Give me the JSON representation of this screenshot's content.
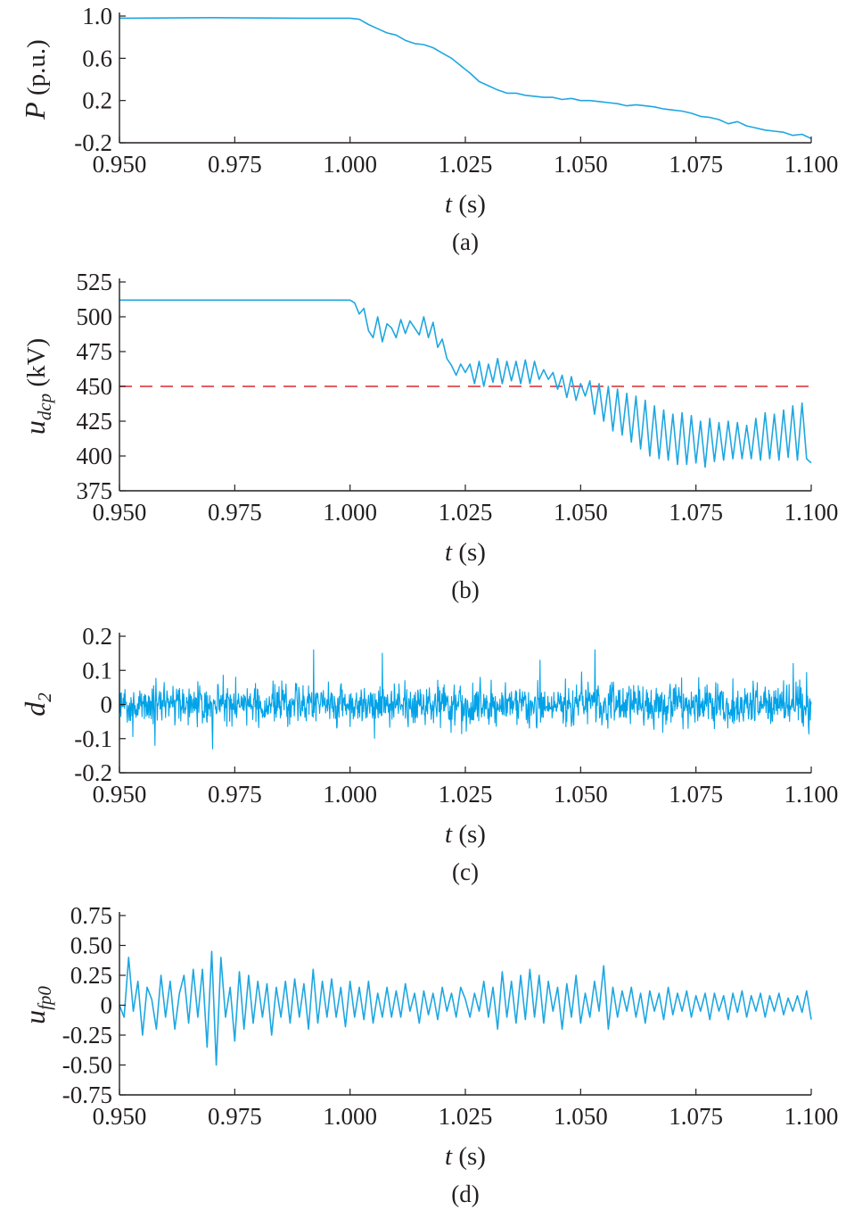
{
  "chart_data": [
    {
      "type": "line",
      "caption": "(a)",
      "ylabel_var": "P",
      "ylabel_unit": " (p.u.)",
      "xlabel_var": "t",
      "xlabel_unit": " (s)",
      "xlim": [
        0.95,
        1.1
      ],
      "ylim": [
        -0.2,
        1.0
      ],
      "xticks": [
        "0.950",
        "0.975",
        "1.000",
        "1.025",
        "1.050",
        "1.075",
        "1.100"
      ],
      "yticks": [
        "1.0",
        "0.6",
        "0.2",
        "-0.2"
      ],
      "ytick_values": [
        1.0,
        0.6,
        0.2,
        -0.2
      ],
      "line_color": "#1ea7e1",
      "series": [
        {
          "x": [
            0.95,
            0.97,
            0.99,
            1.0,
            1.002,
            1.004,
            1.006,
            1.008,
            1.01,
            1.012,
            1.014,
            1.016,
            1.018,
            1.02,
            1.022,
            1.024,
            1.026,
            1.028,
            1.03,
            1.032,
            1.034,
            1.036,
            1.038,
            1.04,
            1.042,
            1.044,
            1.046,
            1.048,
            1.05,
            1.052,
            1.054,
            1.056,
            1.058,
            1.06,
            1.062,
            1.064,
            1.066,
            1.068,
            1.07,
            1.072,
            1.074,
            1.076,
            1.078,
            1.08,
            1.082,
            1.084,
            1.086,
            1.088,
            1.09,
            1.092,
            1.094,
            1.096,
            1.098,
            1.1
          ],
          "y": [
            0.98,
            0.985,
            0.98,
            0.98,
            0.97,
            0.92,
            0.88,
            0.84,
            0.82,
            0.77,
            0.74,
            0.73,
            0.7,
            0.65,
            0.6,
            0.53,
            0.46,
            0.38,
            0.34,
            0.3,
            0.27,
            0.27,
            0.25,
            0.24,
            0.23,
            0.23,
            0.21,
            0.22,
            0.2,
            0.2,
            0.19,
            0.18,
            0.17,
            0.15,
            0.16,
            0.15,
            0.14,
            0.12,
            0.11,
            0.1,
            0.08,
            0.05,
            0.04,
            0.02,
            -0.02,
            0.0,
            -0.04,
            -0.06,
            -0.08,
            -0.09,
            -0.1,
            -0.13,
            -0.12,
            -0.16
          ]
        }
      ]
    },
    {
      "type": "line",
      "caption": "(b)",
      "ylabel_var": "u",
      "ylabel_sub": "dcp",
      "ylabel_unit": " (kV)",
      "xlabel_var": "t",
      "xlabel_unit": " (s)",
      "xlim": [
        0.95,
        1.1
      ],
      "ylim": [
        375,
        525
      ],
      "xticks": [
        "0.950",
        "0.975",
        "1.000",
        "1.025",
        "1.050",
        "1.075",
        "1.100"
      ],
      "yticks": [
        "525",
        "500",
        "475",
        "450",
        "425",
        "400",
        "375"
      ],
      "ytick_values": [
        525,
        500,
        475,
        450,
        425,
        400,
        375
      ],
      "line_color": "#1ea7e1",
      "reference_line": {
        "y": 450,
        "color": "#e0474c",
        "style": "dashed"
      },
      "series": [
        {
          "x": [
            0.95,
            1.0,
            1.001,
            1.002,
            1.003,
            1.004,
            1.005,
            1.006,
            1.007,
            1.008,
            1.009,
            1.01,
            1.011,
            1.012,
            1.013,
            1.014,
            1.015,
            1.016,
            1.017,
            1.018,
            1.019,
            1.02,
            1.021,
            1.022,
            1.023,
            1.024,
            1.025,
            1.026,
            1.027,
            1.028,
            1.029,
            1.03,
            1.031,
            1.032,
            1.033,
            1.034,
            1.035,
            1.036,
            1.037,
            1.038,
            1.039,
            1.04,
            1.041,
            1.042,
            1.043,
            1.044,
            1.045,
            1.046,
            1.047,
            1.048,
            1.049,
            1.05,
            1.051,
            1.052,
            1.053,
            1.054,
            1.055,
            1.056,
            1.057,
            1.058,
            1.059,
            1.06,
            1.061,
            1.062,
            1.063,
            1.064,
            1.065,
            1.066,
            1.067,
            1.068,
            1.069,
            1.07,
            1.071,
            1.072,
            1.073,
            1.074,
            1.075,
            1.076,
            1.077,
            1.078,
            1.079,
            1.08,
            1.081,
            1.082,
            1.083,
            1.084,
            1.085,
            1.086,
            1.087,
            1.088,
            1.089,
            1.09,
            1.091,
            1.092,
            1.093,
            1.094,
            1.095,
            1.096,
            1.097,
            1.098,
            1.099,
            1.1
          ],
          "y": [
            512,
            512,
            510,
            502,
            506,
            490,
            485,
            500,
            482,
            495,
            492,
            485,
            498,
            488,
            497,
            492,
            487,
            500,
            485,
            496,
            478,
            484,
            470,
            465,
            458,
            466,
            460,
            466,
            452,
            468,
            450,
            466,
            453,
            470,
            452,
            468,
            454,
            468,
            452,
            469,
            452,
            468,
            455,
            462,
            455,
            460,
            448,
            458,
            442,
            457,
            440,
            452,
            443,
            454,
            430,
            452,
            425,
            450,
            418,
            448,
            415,
            445,
            410,
            443,
            405,
            440,
            400,
            436,
            398,
            433,
            397,
            430,
            394,
            431,
            394,
            429,
            395,
            425,
            392,
            427,
            396,
            424,
            397,
            425,
            398,
            424,
            398,
            422,
            398,
            427,
            397,
            431,
            398,
            430,
            397,
            433,
            399,
            436,
            397,
            438,
            398,
            395
          ]
        }
      ]
    },
    {
      "type": "line",
      "caption": "(c)",
      "ylabel_var": "d",
      "ylabel_sub": "2",
      "ylabel_unit": "",
      "xlabel_var": "t",
      "xlabel_unit": " (s)",
      "xlim": [
        0.95,
        1.1
      ],
      "ylim": [
        -0.2,
        0.2
      ],
      "xticks": [
        "0.950",
        "0.975",
        "1.000",
        "1.025",
        "1.050",
        "1.075",
        "1.100"
      ],
      "yticks": [
        "0.2",
        "0.1",
        "0",
        "-0.1",
        "-0.2"
      ],
      "ytick_values": [
        0.2,
        0.1,
        0,
        -0.1,
        -0.2
      ],
      "line_color": "#00a2e8",
      "noise": {
        "samples": 1500,
        "std": 0.03,
        "max_abs": 0.16
      },
      "series": [
        {
          "x": [
            0.95,
            0.9577,
            0.9702,
            0.9921,
            1.007,
            1.0412,
            1.0531,
            1.0961,
            1.1
          ],
          "y": [
            0.0,
            -0.12,
            -0.13,
            0.16,
            0.15,
            0.13,
            0.16,
            0.12,
            0.0
          ]
        }
      ]
    },
    {
      "type": "line",
      "caption": "(d)",
      "ylabel_var": "u",
      "ylabel_sub": "fp0",
      "ylabel_unit": "",
      "xlabel_var": "t",
      "xlabel_unit": " (s)",
      "xlim": [
        0.95,
        1.1
      ],
      "ylim": [
        -0.75,
        0.75
      ],
      "xticks": [
        "0.950",
        "0.975",
        "1.000",
        "1.025",
        "1.050",
        "1.075",
        "1.100"
      ],
      "yticks": [
        "0.75",
        "0.50",
        "0.25",
        "0",
        "-0.25",
        "-0.50",
        "-0.75"
      ],
      "ytick_values": [
        0.75,
        0.5,
        0.25,
        0,
        -0.25,
        -0.5,
        -0.75
      ],
      "line_color": "#1ea7e1",
      "series": [
        {
          "x": [
            0.95,
            0.951,
            0.952,
            0.953,
            0.954,
            0.955,
            0.956,
            0.957,
            0.958,
            0.959,
            0.96,
            0.961,
            0.962,
            0.963,
            0.964,
            0.965,
            0.966,
            0.967,
            0.968,
            0.969,
            0.97,
            0.971,
            0.972,
            0.973,
            0.974,
            0.975,
            0.976,
            0.977,
            0.978,
            0.979,
            0.98,
            0.981,
            0.982,
            0.983,
            0.984,
            0.985,
            0.986,
            0.987,
            0.988,
            0.989,
            0.99,
            0.991,
            0.992,
            0.993,
            0.994,
            0.995,
            0.996,
            0.997,
            0.998,
            0.999,
            1.0,
            1.001,
            1.002,
            1.003,
            1.004,
            1.005,
            1.006,
            1.007,
            1.008,
            1.009,
            1.01,
            1.011,
            1.012,
            1.013,
            1.014,
            1.015,
            1.016,
            1.017,
            1.018,
            1.019,
            1.02,
            1.021,
            1.022,
            1.023,
            1.024,
            1.025,
            1.026,
            1.027,
            1.028,
            1.029,
            1.03,
            1.031,
            1.032,
            1.033,
            1.034,
            1.035,
            1.036,
            1.037,
            1.038,
            1.039,
            1.04,
            1.041,
            1.042,
            1.043,
            1.044,
            1.045,
            1.046,
            1.047,
            1.048,
            1.049,
            1.05,
            1.051,
            1.052,
            1.053,
            1.054,
            1.055,
            1.056,
            1.057,
            1.058,
            1.059,
            1.06,
            1.061,
            1.062,
            1.063,
            1.064,
            1.065,
            1.066,
            1.067,
            1.068,
            1.069,
            1.07,
            1.071,
            1.072,
            1.073,
            1.074,
            1.075,
            1.076,
            1.077,
            1.078,
            1.079,
            1.08,
            1.081,
            1.082,
            1.083,
            1.084,
            1.085,
            1.086,
            1.087,
            1.088,
            1.089,
            1.09,
            1.091,
            1.092,
            1.093,
            1.094,
            1.095,
            1.096,
            1.097,
            1.098,
            1.099,
            1.1
          ],
          "y": [
            0.0,
            -0.1,
            0.4,
            -0.05,
            0.2,
            -0.25,
            0.15,
            0.05,
            -0.2,
            0.25,
            -0.1,
            0.2,
            -0.2,
            0.1,
            0.25,
            -0.15,
            0.3,
            -0.1,
            0.3,
            -0.35,
            0.45,
            -0.5,
            0.4,
            -0.1,
            0.15,
            -0.3,
            0.28,
            -0.2,
            0.25,
            -0.15,
            0.2,
            -0.1,
            0.18,
            -0.25,
            0.15,
            -0.1,
            0.2,
            -0.15,
            0.22,
            -0.1,
            0.18,
            -0.2,
            0.3,
            -0.15,
            0.2,
            -0.1,
            0.22,
            -0.1,
            0.15,
            -0.18,
            0.2,
            -0.1,
            0.15,
            -0.12,
            0.2,
            -0.15,
            0.1,
            -0.1,
            0.15,
            -0.1,
            0.12,
            -0.1,
            0.18,
            -0.05,
            0.1,
            -0.15,
            0.12,
            -0.08,
            0.1,
            -0.12,
            0.15,
            -0.05,
            0.1,
            -0.1,
            0.15,
            0.05,
            -0.1,
            0.1,
            -0.05,
            0.2,
            -0.1,
            0.15,
            -0.2,
            0.28,
            -0.1,
            0.2,
            -0.15,
            0.25,
            -0.12,
            0.3,
            -0.1,
            0.25,
            -0.15,
            0.2,
            -0.05,
            0.15,
            -0.2,
            0.18,
            -0.1,
            0.25,
            -0.15,
            0.1,
            -0.1,
            0.2,
            -0.05,
            0.33,
            -0.2,
            0.15,
            -0.1,
            0.12,
            -0.05,
            0.15,
            -0.1,
            0.1,
            -0.15,
            0.12,
            -0.05,
            0.1,
            -0.12,
            0.15,
            -0.08,
            0.1,
            -0.05,
            0.12,
            -0.1,
            0.08,
            -0.05,
            0.1,
            -0.12,
            0.1,
            -0.05,
            0.08,
            -0.12,
            0.1,
            -0.06,
            0.12,
            -0.1,
            0.08,
            -0.05,
            0.1,
            -0.1,
            0.08,
            -0.05,
            0.1,
            -0.08,
            0.06,
            -0.05,
            0.08,
            -0.06,
            0.12,
            -0.12
          ]
        }
      ]
    }
  ]
}
